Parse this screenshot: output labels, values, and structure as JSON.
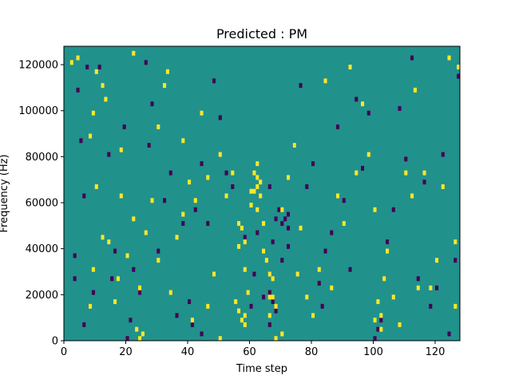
{
  "chart_data": {
    "type": "heatmap",
    "title": "Predicted : PM",
    "xlabel": "Time step",
    "ylabel": "Frequency (Hz)",
    "xlim": [
      0,
      128
    ],
    "ylim": [
      0,
      128000
    ],
    "x_ticks": [
      0,
      20,
      40,
      60,
      80,
      100,
      120
    ],
    "y_ticks": [
      0,
      20000,
      40000,
      60000,
      80000,
      100000,
      120000
    ],
    "x_tick_labels": [
      "0",
      "20",
      "40",
      "60",
      "80",
      "100",
      "120"
    ],
    "y_tick_labels": [
      "0",
      "20000",
      "40000",
      "60000",
      "80000",
      "100000",
      "120000"
    ],
    "colormap": "viridis",
    "background_value": 0,
    "colors": {
      "low": "#440154",
      "mid": "#21918c",
      "high": "#fde725"
    },
    "grid": false,
    "n_time_steps": 128,
    "n_freq_bins": 64,
    "freq_bin_hz": 2000,
    "cells_high": [
      [
        2,
        120000
      ],
      [
        4,
        122000
      ],
      [
        8,
        14000
      ],
      [
        8,
        88000
      ],
      [
        9,
        30000
      ],
      [
        9,
        98000
      ],
      [
        10,
        66000
      ],
      [
        10,
        116000
      ],
      [
        12,
        44000
      ],
      [
        14,
        42000
      ],
      [
        12,
        110000
      ],
      [
        13,
        104000
      ],
      [
        16,
        16000
      ],
      [
        17,
        26000
      ],
      [
        18,
        62000
      ],
      [
        18,
        82000
      ],
      [
        20,
        36000
      ],
      [
        22,
        52000
      ],
      [
        22,
        124000
      ],
      [
        23,
        4000
      ],
      [
        24,
        0
      ],
      [
        24,
        22000
      ],
      [
        25,
        2000
      ],
      [
        26,
        46000
      ],
      [
        28,
        60000
      ],
      [
        30,
        92000
      ],
      [
        30,
        34000
      ],
      [
        32,
        110000
      ],
      [
        33,
        116000
      ],
      [
        34,
        20000
      ],
      [
        36,
        44000
      ],
      [
        38,
        54000
      ],
      [
        38,
        86000
      ],
      [
        40,
        68000
      ],
      [
        41,
        8000
      ],
      [
        42,
        60000
      ],
      [
        44,
        98000
      ],
      [
        46,
        70000
      ],
      [
        46,
        14000
      ],
      [
        48,
        28000
      ],
      [
        50,
        0
      ],
      [
        50,
        80000
      ],
      [
        52,
        62000
      ],
      [
        54,
        72000
      ],
      [
        55,
        16000
      ],
      [
        56,
        40000
      ],
      [
        56,
        50000
      ],
      [
        57,
        48000
      ],
      [
        58,
        42000
      ],
      [
        58,
        30000
      ],
      [
        59,
        20000
      ],
      [
        60,
        64000
      ],
      [
        61,
        72000
      ],
      [
        62,
        76000
      ],
      [
        62,
        56000
      ],
      [
        63,
        62000
      ],
      [
        64,
        50000
      ],
      [
        64,
        38000
      ],
      [
        65,
        34000
      ],
      [
        66,
        18000
      ],
      [
        67,
        26000
      ],
      [
        68,
        0
      ],
      [
        70,
        2000
      ],
      [
        70,
        56000
      ],
      [
        72,
        70000
      ],
      [
        74,
        84000
      ],
      [
        75,
        28000
      ],
      [
        76,
        48000
      ],
      [
        78,
        18000
      ],
      [
        80,
        10000
      ],
      [
        82,
        30000
      ],
      [
        84,
        112000
      ],
      [
        86,
        22000
      ],
      [
        88,
        62000
      ],
      [
        90,
        50000
      ],
      [
        92,
        118000
      ],
      [
        94,
        72000
      ],
      [
        96,
        102000
      ],
      [
        98,
        80000
      ],
      [
        100,
        56000
      ],
      [
        102,
        10000
      ],
      [
        103,
        26000
      ],
      [
        104,
        38000
      ],
      [
        106,
        18000
      ],
      [
        108,
        6000
      ],
      [
        110,
        72000
      ],
      [
        112,
        62000
      ],
      [
        113,
        108000
      ],
      [
        114,
        22000
      ],
      [
        116,
        72000
      ],
      [
        118,
        22000
      ],
      [
        120,
        34000
      ],
      [
        122,
        66000
      ],
      [
        124,
        122000
      ],
      [
        126,
        14000
      ],
      [
        127,
        118000
      ],
      [
        126,
        42000
      ],
      [
        100,
        8000
      ],
      [
        101,
        16000
      ],
      [
        102,
        4000
      ],
      [
        62,
        66000
      ],
      [
        63,
        68000
      ],
      [
        62,
        70000
      ],
      [
        61,
        64000
      ],
      [
        60,
        58000
      ],
      [
        66,
        28000
      ],
      [
        58,
        10000
      ],
      [
        56,
        12000
      ],
      [
        57,
        8000
      ],
      [
        58,
        6000
      ],
      [
        66,
        10000
      ],
      [
        67,
        18000
      ],
      [
        68,
        14000
      ]
    ],
    "cells_low": [
      [
        3,
        26000
      ],
      [
        3,
        36000
      ],
      [
        4,
        108000
      ],
      [
        5,
        86000
      ],
      [
        6,
        6000
      ],
      [
        6,
        62000
      ],
      [
        7,
        118000
      ],
      [
        9,
        20000
      ],
      [
        11,
        118000
      ],
      [
        14,
        80000
      ],
      [
        15,
        26000
      ],
      [
        16,
        38000
      ],
      [
        19,
        92000
      ],
      [
        20,
        0
      ],
      [
        21,
        8000
      ],
      [
        22,
        30000
      ],
      [
        24,
        20000
      ],
      [
        26,
        120000
      ],
      [
        27,
        84000
      ],
      [
        28,
        102000
      ],
      [
        30,
        38000
      ],
      [
        32,
        60000
      ],
      [
        34,
        72000
      ],
      [
        36,
        10000
      ],
      [
        38,
        50000
      ],
      [
        40,
        16000
      ],
      [
        41,
        6000
      ],
      [
        42,
        56000
      ],
      [
        44,
        2000
      ],
      [
        44,
        76000
      ],
      [
        46,
        50000
      ],
      [
        48,
        112000
      ],
      [
        50,
        96000
      ],
      [
        52,
        72000
      ],
      [
        54,
        66000
      ],
      [
        58,
        44000
      ],
      [
        60,
        14000
      ],
      [
        61,
        28000
      ],
      [
        62,
        46000
      ],
      [
        64,
        18000
      ],
      [
        66,
        66000
      ],
      [
        67,
        42000
      ],
      [
        68,
        52000
      ],
      [
        69,
        56000
      ],
      [
        70,
        34000
      ],
      [
        72,
        40000
      ],
      [
        72,
        54000
      ],
      [
        74,
        84000
      ],
      [
        76,
        110000
      ],
      [
        78,
        66000
      ],
      [
        80,
        76000
      ],
      [
        82,
        24000
      ],
      [
        83,
        14000
      ],
      [
        84,
        38000
      ],
      [
        86,
        46000
      ],
      [
        88,
        92000
      ],
      [
        90,
        60000
      ],
      [
        92,
        30000
      ],
      [
        94,
        104000
      ],
      [
        96,
        74000
      ],
      [
        98,
        98000
      ],
      [
        100,
        0
      ],
      [
        101,
        4000
      ],
      [
        102,
        8000
      ],
      [
        104,
        42000
      ],
      [
        106,
        56000
      ],
      [
        108,
        100000
      ],
      [
        110,
        78000
      ],
      [
        112,
        122000
      ],
      [
        114,
        26000
      ],
      [
        116,
        68000
      ],
      [
        118,
        14000
      ],
      [
        120,
        22000
      ],
      [
        122,
        80000
      ],
      [
        124,
        2000
      ],
      [
        126,
        34000
      ],
      [
        127,
        114000
      ],
      [
        70,
        50000
      ],
      [
        71,
        52000
      ],
      [
        72,
        48000
      ],
      [
        66,
        20000
      ],
      [
        67,
        16000
      ],
      [
        68,
        12000
      ],
      [
        66,
        6000
      ]
    ]
  }
}
